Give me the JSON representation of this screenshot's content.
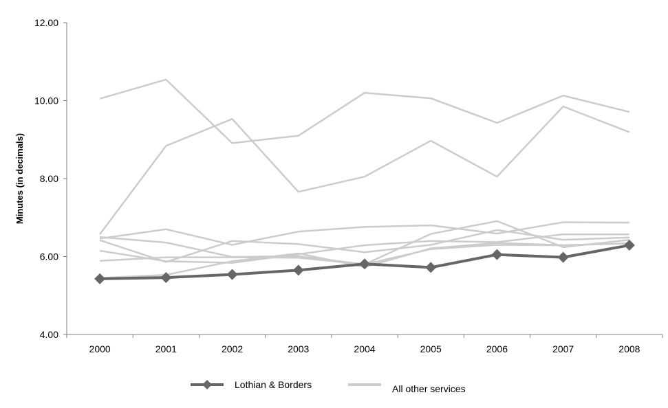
{
  "chart_data": {
    "type": "line",
    "title": "",
    "xlabel": "",
    "ylabel": "Minutes (in decimals)",
    "categories": [
      "2000",
      "2001",
      "2002",
      "2003",
      "2004",
      "2005",
      "2006",
      "2007",
      "2008"
    ],
    "y_tick_labels": [
      "4.00",
      "6.00",
      "8.00",
      "10.00",
      "12.00"
    ],
    "ylim": [
      4,
      12
    ],
    "grid": false,
    "legend_position": "bottom",
    "highlight_series": {
      "name": "Lothian & Borders",
      "color": "#666666",
      "marker": "diamond",
      "values": [
        5.43,
        5.46,
        5.54,
        5.65,
        5.81,
        5.72,
        6.05,
        5.98,
        6.29
      ]
    },
    "other_label": "All other services",
    "other_color": "#cccccc",
    "other_series": [
      {
        "values": [
          10.05,
          10.54,
          8.91,
          9.1,
          10.2,
          10.06,
          9.43,
          10.13,
          9.71
        ]
      },
      {
        "values": [
          6.57,
          8.84,
          9.53,
          7.66,
          8.05,
          8.97,
          8.05,
          9.85,
          9.19
        ]
      },
      {
        "values": [
          6.46,
          6.7,
          6.3,
          6.64,
          6.76,
          6.8,
          6.59,
          6.88,
          6.87
        ]
      },
      {
        "values": [
          6.5,
          6.36,
          5.99,
          6.01,
          5.8,
          6.58,
          6.91,
          6.24,
          6.43
        ]
      },
      {
        "values": [
          6.42,
          5.86,
          6.4,
          6.32,
          6.11,
          6.3,
          6.68,
          6.43,
          6.49
        ]
      },
      {
        "values": [
          6.15,
          5.88,
          5.84,
          6.06,
          6.29,
          6.4,
          6.37,
          6.57,
          6.57
        ]
      },
      {
        "values": [
          5.89,
          5.98,
          5.98,
          5.97,
          5.8,
          6.19,
          6.3,
          6.29,
          6.34
        ]
      },
      {
        "values": [
          5.45,
          5.53,
          5.88,
          6.08,
          5.73,
          6.21,
          6.35,
          6.29,
          6.34
        ]
      }
    ]
  }
}
